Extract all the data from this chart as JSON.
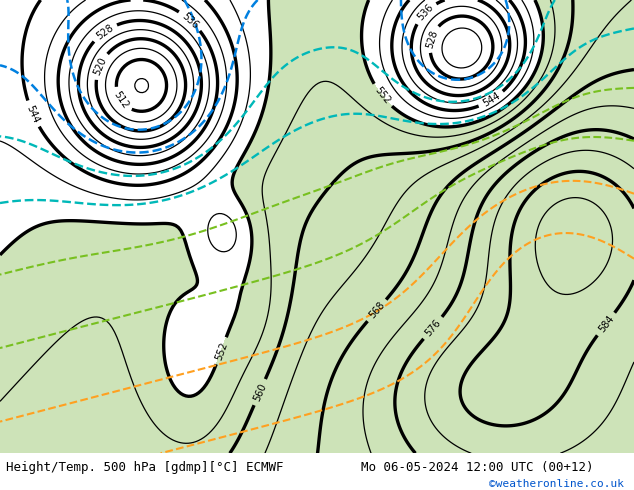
{
  "title_left": "Height/Temp. 500 hPa [gdmp][°C] ECMWF",
  "title_right": "Mo 06-05-2024 12:00 UTC (00+12)",
  "title_bottom": "©weatheronline.co.uk",
  "fig_bg": "#ffffff",
  "font_size_title": 9,
  "font_size_labels": 7,
  "map_extent": [
    -35,
    40,
    28,
    72
  ],
  "figsize": [
    6.34,
    4.9
  ],
  "dpi": 100,
  "ocean_color": "#c8c8c8",
  "land_color": "#c8c8c8",
  "green_fill_color": "#b8d89a",
  "height_bold_color": "#000000",
  "height_thin_color": "#000000",
  "temp_blue_color": "#0080e0",
  "temp_cyan_color": "#00b8b8",
  "temp_green_color": "#78c020",
  "temp_orange_color": "#ffa020",
  "bottom_bar_color": "#e8e8e8"
}
